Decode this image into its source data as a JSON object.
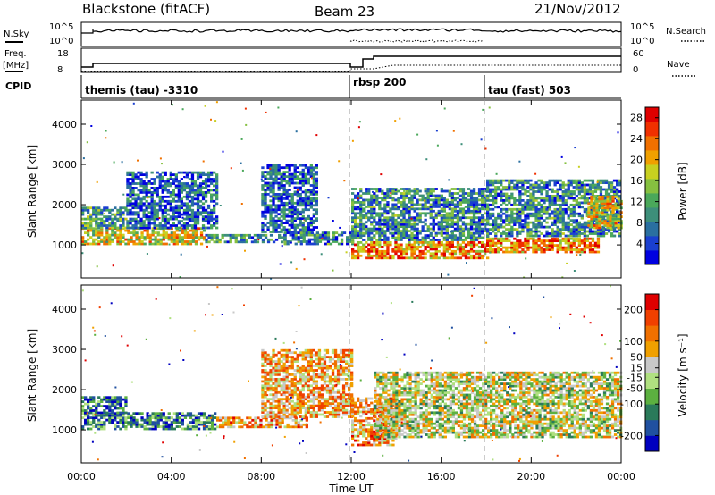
{
  "header": {
    "station": "Blackstone (fitACF)",
    "beam": "Beam 23",
    "date": "21/Nov/2012"
  },
  "top_panels": {
    "nsky_label": "N.Sky",
    "nsky_ticks": [
      "10^5",
      "10^0"
    ],
    "nsearch_label": "N.Search",
    "nsearch_ticks": [
      "10^5",
      "10^0"
    ],
    "freq_label": "Freq.",
    "freq_unit": "[MHz]",
    "freq_ticks": [
      "18",
      "8"
    ],
    "nave_label": "Nave",
    "nave_ticks": [
      "60",
      "0"
    ],
    "cpid_label": "CPID",
    "cpid_segments": [
      {
        "label": "themis (tau) -3310",
        "start_hour": 0
      },
      {
        "label": "rbsp 200",
        "start_hour": 12
      },
      {
        "label": "tau (fast) 503",
        "start_hour": 18
      }
    ]
  },
  "chart_data": [
    {
      "type": "heatmap",
      "name": "power",
      "ylabel": "Slant Range [km]",
      "xlabel": "Time UT",
      "x_ticks": [
        "00:00",
        "04:00",
        "08:00",
        "12:00",
        "16:00",
        "20:00",
        "00:00"
      ],
      "xlim_hours": [
        0,
        24
      ],
      "y_ticks": [
        1000,
        2000,
        3000,
        4000
      ],
      "ylim_km": [
        180,
        4600
      ],
      "colorbar": {
        "label": "Power [dB]",
        "ticks": [
          4,
          8,
          12,
          16,
          20,
          24,
          28
        ],
        "range": [
          0,
          30
        ]
      },
      "colors": [
        "#0000e0",
        "#1a3fd0",
        "#2a6fa0",
        "#3d8f7a",
        "#4aa85a",
        "#86c040",
        "#c8d020",
        "#f0a000",
        "#f07000",
        "#f03000",
        "#e00000"
      ],
      "bands": [
        {
          "t0": 0.0,
          "t1": 5.5,
          "r0": 1000,
          "r1": 1400,
          "level": 0.6
        },
        {
          "t0": 0.0,
          "t1": 2.0,
          "r0": 1400,
          "r1": 1900,
          "level": 0.35
        },
        {
          "t0": 2.0,
          "t1": 6.0,
          "r0": 1400,
          "r1": 2800,
          "level": 0.2
        },
        {
          "t0": 5.5,
          "t1": 9.0,
          "r0": 1050,
          "r1": 1250,
          "level": 0.3
        },
        {
          "t0": 8.0,
          "t1": 10.5,
          "r0": 1300,
          "r1": 3000,
          "level": 0.2
        },
        {
          "t0": 9.0,
          "t1": 12.0,
          "r0": 1000,
          "r1": 1300,
          "level": 0.3
        },
        {
          "t0": 12.0,
          "t1": 18.0,
          "r0": 650,
          "r1": 1050,
          "level": 0.75
        },
        {
          "t0": 12.0,
          "t1": 18.0,
          "r0": 1100,
          "r1": 2400,
          "level": 0.3
        },
        {
          "t0": 18.0,
          "t1": 23.0,
          "r0": 800,
          "r1": 1150,
          "level": 0.75
        },
        {
          "t0": 18.0,
          "t1": 24.0,
          "r0": 1200,
          "r1": 2600,
          "level": 0.3
        },
        {
          "t0": 22.5,
          "t1": 24.0,
          "r0": 1400,
          "r1": 2200,
          "level": 0.6
        }
      ]
    },
    {
      "type": "heatmap",
      "name": "velocity",
      "ylabel": "Slant Range [km]",
      "xlabel": "Time UT",
      "x_ticks": [
        "00:00",
        "04:00",
        "08:00",
        "12:00",
        "16:00",
        "20:00",
        "00:00"
      ],
      "xlim_hours": [
        0,
        24
      ],
      "y_ticks": [
        1000,
        2000,
        3000,
        4000
      ],
      "ylim_km": [
        180,
        4600
      ],
      "colorbar": {
        "label": "Velocity [m s⁻¹]",
        "ticks": [
          200,
          100,
          50,
          15,
          -15,
          -50,
          -100,
          -200
        ],
        "range": [
          -250,
          250
        ]
      },
      "colors": [
        "#0000c0",
        "#2050a0",
        "#2a7a5a",
        "#5cb040",
        "#b0e080",
        "#c8c8c8",
        "#f0a000",
        "#f07000",
        "#f04000",
        "#e00000"
      ],
      "bands": [
        {
          "t0": 0.0,
          "t1": 6.0,
          "r0": 1000,
          "r1": 1400,
          "level": 0.25
        },
        {
          "t0": 0.0,
          "t1": 2.0,
          "r0": 1400,
          "r1": 1800,
          "level": 0.2
        },
        {
          "t0": 6.0,
          "t1": 10.0,
          "r0": 1050,
          "r1": 1300,
          "level": 0.7
        },
        {
          "t0": 8.0,
          "t1": 12.0,
          "r0": 1300,
          "r1": 3000,
          "level": 0.65
        },
        {
          "t0": 12.0,
          "t1": 14.0,
          "r0": 600,
          "r1": 1800,
          "level": 0.7
        },
        {
          "t0": 13.0,
          "t1": 24.0,
          "r0": 800,
          "r1": 2400,
          "level": 0.5
        }
      ]
    }
  ]
}
